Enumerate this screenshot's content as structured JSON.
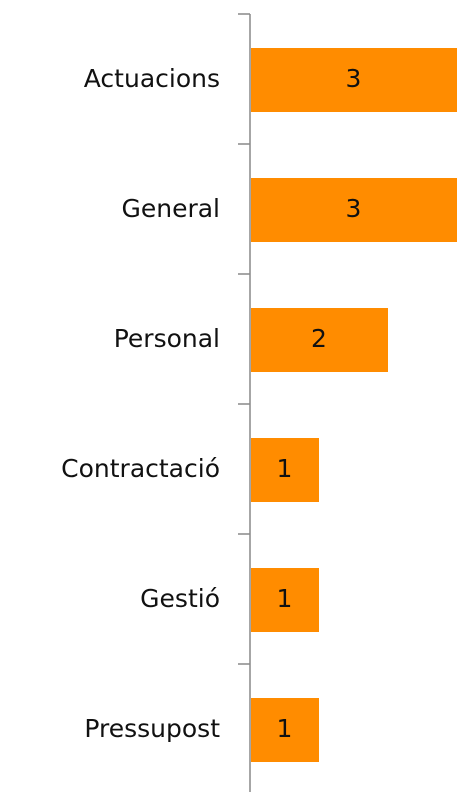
{
  "chart_data": {
    "type": "bar",
    "orientation": "horizontal",
    "categories": [
      "Actuacions",
      "General",
      "Personal",
      "Contractació",
      "Gestió",
      "Pressupost"
    ],
    "values": [
      3,
      3,
      2,
      1,
      1,
      1
    ],
    "color": "#ff8c00"
  }
}
